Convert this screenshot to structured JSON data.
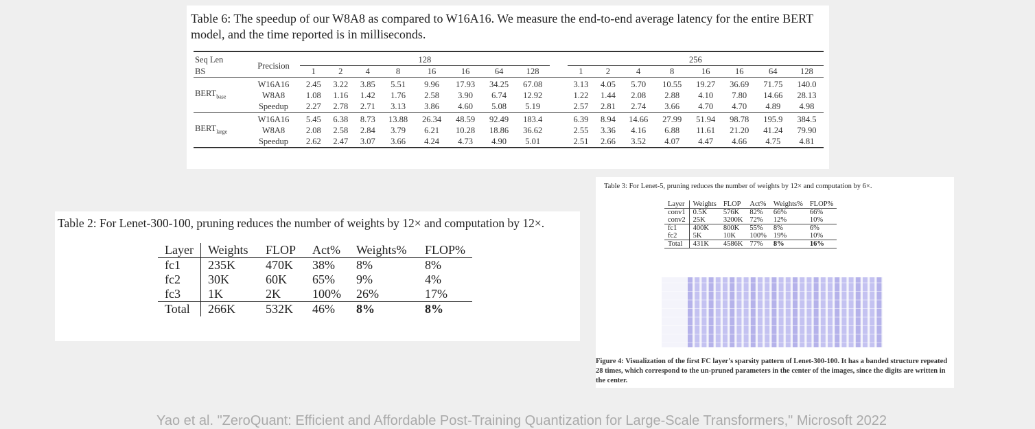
{
  "table6": {
    "caption": "Table 6: The speedup of our W8A8 as compared to W16A16. We measure the end-to-end average latency for the entire BERT model, and the time reported is in milliseconds.",
    "header": {
      "seq_len": "Seq Len",
      "bs": "BS",
      "precision": "Precision",
      "seq_lens": [
        "128",
        "256"
      ],
      "batch_sizes": [
        [
          "1",
          "2",
          "4",
          "8",
          "16",
          "16",
          "64",
          "128"
        ],
        [
          "1",
          "2",
          "4",
          "8",
          "16",
          "16",
          "64",
          "128"
        ]
      ]
    },
    "groups": [
      {
        "model": "BERT",
        "subscript": "base",
        "rows": [
          {
            "precision": "W16A16",
            "values": [
              "2.45",
              "3.22",
              "3.85",
              "5.51",
              "9.96",
              "17.93",
              "34.25",
              "67.08",
              "3.13",
              "4.05",
              "5.70",
              "10.55",
              "19.27",
              "36.69",
              "71.75",
              "140.0"
            ]
          },
          {
            "precision": "W8A8",
            "values": [
              "1.08",
              "1.16",
              "1.42",
              "1.76",
              "2.58",
              "3.90",
              "6.74",
              "12.92",
              "1.22",
              "1.44",
              "2.08",
              "2.88",
              "4.10",
              "7.80",
              "14.66",
              "28.13"
            ]
          },
          {
            "precision": "Speedup",
            "values": [
              "2.27",
              "2.78",
              "2.71",
              "3.13",
              "3.86",
              "4.60",
              "5.08",
              "5.19",
              "2.57",
              "2.81",
              "2.74",
              "3.66",
              "4.70",
              "4.70",
              "4.89",
              "4.98"
            ]
          }
        ]
      },
      {
        "model": "BERT",
        "subscript": "large",
        "rows": [
          {
            "precision": "W16A16",
            "values": [
              "5.45",
              "6.38",
              "8.73",
              "13.88",
              "26.34",
              "48.59",
              "92.49",
              "183.4",
              "6.39",
              "8.94",
              "14.66",
              "27.99",
              "51.94",
              "98.78",
              "195.9",
              "384.5"
            ]
          },
          {
            "precision": "W8A8",
            "values": [
              "2.08",
              "2.58",
              "2.84",
              "3.79",
              "6.21",
              "10.28",
              "18.86",
              "36.62",
              "2.55",
              "3.36",
              "4.16",
              "6.88",
              "11.61",
              "21.20",
              "41.24",
              "79.90"
            ]
          },
          {
            "precision": "Speedup",
            "values": [
              "2.62",
              "2.47",
              "3.07",
              "3.66",
              "4.24",
              "4.73",
              "4.90",
              "5.01",
              "2.51",
              "2.66",
              "3.52",
              "4.07",
              "4.47",
              "4.66",
              "4.75",
              "4.81"
            ]
          }
        ]
      }
    ]
  },
  "table2": {
    "caption": "Table 2: For Lenet-300-100, pruning reduces the number of weights by 12× and computation by 12×.",
    "header": [
      "Layer",
      "Weights",
      "FLOP",
      "Act%",
      "Weights%",
      "FLOP%"
    ],
    "rows": [
      [
        "fc1",
        "235K",
        "470K",
        "38%",
        "8%",
        "8%"
      ],
      [
        "fc2",
        "30K",
        "60K",
        "65%",
        "9%",
        "4%"
      ],
      [
        "fc3",
        "1K",
        "2K",
        "100%",
        "26%",
        "17%"
      ],
      [
        "Total",
        "266K",
        "532K",
        "46%",
        "8%",
        "8%"
      ]
    ]
  },
  "table3": {
    "caption": "Table 3: For Lenet-5, pruning reduces the number of weights by 12× and computation by 6×.",
    "header": [
      "Layer",
      "Weights",
      "FLOP",
      "Act%",
      "Weights%",
      "FLOP%"
    ],
    "rows": [
      [
        "conv1",
        "0.5K",
        "576K",
        "82%",
        "66%",
        "66%"
      ],
      [
        "conv2",
        "25K",
        "3200K",
        "72%",
        "12%",
        "10%"
      ],
      [
        "fc1",
        "400K",
        "800K",
        "55%",
        "8%",
        "6%"
      ],
      [
        "fc2",
        "5K",
        "10K",
        "100%",
        "19%",
        "10%"
      ],
      [
        "Total",
        "431K",
        "4586K",
        "77%",
        "8%",
        "16%"
      ]
    ]
  },
  "figure4": {
    "caption": "Figure 4: Visualization of the first FC layer's sparsity pattern of Lenet-300-100. It has a banded structure repeated 28 times, which correspond to the un-pruned parameters in the center of the images, since the digits are written in the center."
  },
  "footer": "Yao et al. \"ZeroQuant: Efficient and Affordable Post-Training Quantization for Large-Scale Transformers,\" Microsoft 2022"
}
